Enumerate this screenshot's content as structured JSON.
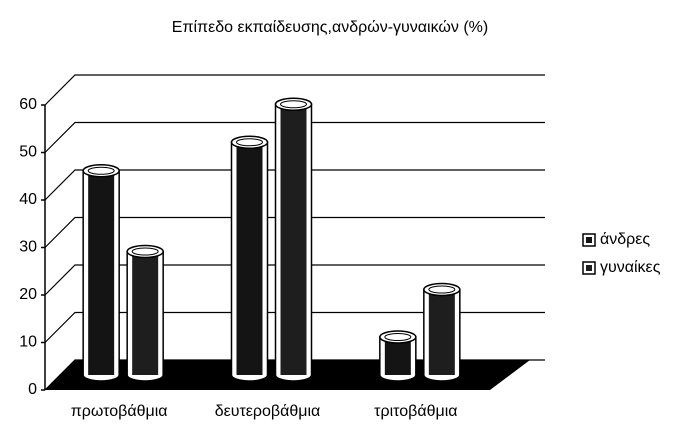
{
  "chart_data": {
    "type": "bar3d",
    "title": "Επίπεδο εκπαίδευσης,ανδρών-γυναικών (%)",
    "categories": [
      "πρωτοβάθμια",
      "δευτεροβάθμια",
      "τριτοβάθμια"
    ],
    "series": [
      {
        "name": "άνδρες",
        "color": "#141414",
        "values": [
          43,
          49,
          8
        ]
      },
      {
        "name": "γυναίκες",
        "color": "#1e1e1e",
        "values": [
          26,
          57,
          18
        ]
      }
    ],
    "ylim": [
      0,
      60
    ],
    "yticks": [
      0,
      10,
      20,
      30,
      40,
      50,
      60
    ],
    "grid": true,
    "legend": "right"
  }
}
